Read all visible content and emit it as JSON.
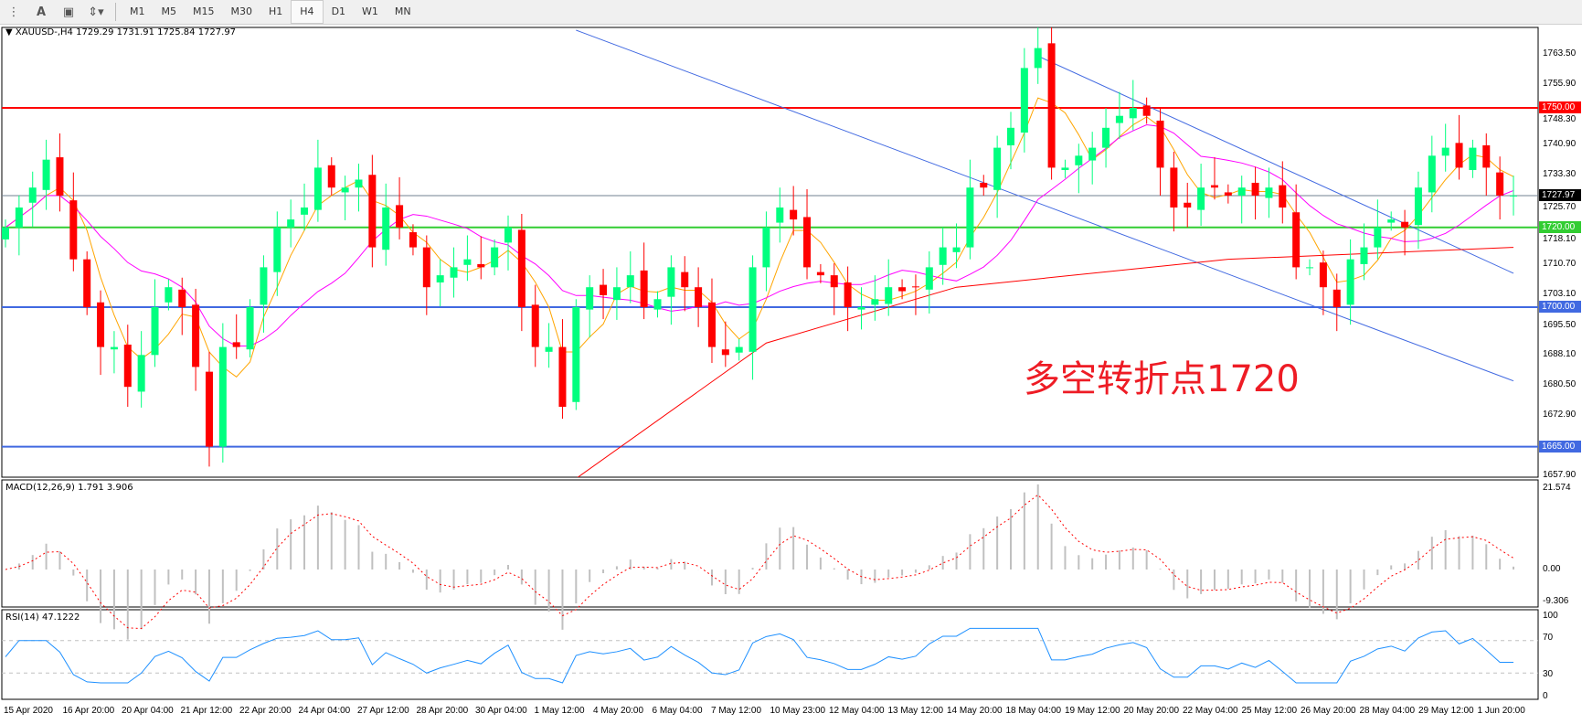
{
  "toolbar": {
    "icons": [
      "fibo-icon",
      "text-label-icon",
      "text-box-icon",
      "arrows-icon"
    ],
    "timeframes": [
      "M1",
      "M5",
      "M15",
      "M30",
      "H1",
      "H4",
      "D1",
      "W1",
      "MN"
    ],
    "active_timeframe": "H4"
  },
  "chart": {
    "symbol_info": "XAUUSD-,H4  1729.29 1731.91 1725.84 1727.97",
    "annotation": "多空转折点1720",
    "price_axis": [
      "1763.50",
      "1755.90",
      "1748.30",
      "1740.90",
      "1733.30",
      "1725.70",
      "1718.10",
      "1710.70",
      "1703.10",
      "1695.50",
      "1688.10",
      "1680.50",
      "1672.90",
      "1657.90"
    ],
    "levels": [
      {
        "label": "1750.00",
        "price": 1750,
        "color": "#ff0000"
      },
      {
        "label": "1727.97",
        "price": 1727.97,
        "color": "#000000",
        "line": "#708090"
      },
      {
        "label": "1720.00",
        "price": 1720,
        "color": "#32cd32"
      },
      {
        "label": "1700.00",
        "price": 1700,
        "color": "#4169e1"
      },
      {
        "label": "1665.00",
        "price": 1665,
        "color": "#4169e1"
      }
    ],
    "time_axis": [
      "15 Apr 2020",
      "16 Apr 20:00",
      "20 Apr 04:00",
      "21 Apr 12:00",
      "22 Apr 20:00",
      "24 Apr 04:00",
      "27 Apr 12:00",
      "28 Apr 20:00",
      "30 Apr 04:00",
      "1 May 12:00",
      "4 May 20:00",
      "6 May 04:00",
      "7 May 12:00",
      "10 May 23:00",
      "12 May 04:00",
      "13 May 12:00",
      "14 May 20:00",
      "18 May 04:00",
      "19 May 12:00",
      "20 May 20:00",
      "22 May 04:00",
      "25 May 12:00",
      "26 May 20:00",
      "28 May 04:00",
      "29 May 12:00",
      "1 Jun 20:00"
    ],
    "closes": [
      1720,
      1725,
      1730,
      1737,
      1728,
      1712,
      1700,
      1690,
      1690,
      1680,
      1688,
      1700,
      1705,
      1700,
      1685,
      1665,
      1690,
      1690,
      1700,
      1710,
      1720,
      1722,
      1725,
      1735,
      1730,
      1730,
      1732,
      1715,
      1725,
      1720,
      1715,
      1705,
      1708,
      1710,
      1712,
      1710,
      1715,
      1720,
      1700,
      1690,
      1690,
      1675,
      1700,
      1705,
      1703,
      1705,
      1708,
      1700,
      1702,
      1710,
      1705,
      1700,
      1690,
      1688,
      1690,
      1710,
      1720,
      1725,
      1722,
      1710,
      1708,
      1705,
      1700,
      1700,
      1702,
      1705,
      1704,
      1705,
      1710,
      1715,
      1715,
      1730,
      1730,
      1740,
      1745,
      1760,
      1765,
      1735,
      1735,
      1738,
      1740,
      1745,
      1748,
      1750,
      1748,
      1735,
      1725,
      1725,
      1730,
      1730,
      1728,
      1730,
      1728,
      1730,
      1725,
      1710,
      1710,
      1705,
      1700,
      1712,
      1715,
      1720,
      1722,
      1720,
      1730,
      1738,
      1740,
      1735,
      1740,
      1735,
      1728,
      1728
    ],
    "ma200": [
      [
        42,
        1657
      ],
      [
        56,
        1691
      ],
      [
        70,
        1705
      ],
      [
        90,
        1712
      ],
      [
        111,
        1715
      ]
    ],
    "trendlines": [
      {
        "from": [
          42,
          1769.5
        ],
        "to": [
          111,
          1681.5
        ],
        "color": "#4169e1"
      },
      {
        "from": [
          76,
          1763
        ],
        "to": [
          111,
          1708.5
        ],
        "color": "#4169e1"
      }
    ],
    "colors": {
      "bull": "#00ff7f",
      "bear": "#ff0000",
      "ma_fast": "#ffa500",
      "ma_mid": "#ff00ff",
      "ma_slow": "#ff0000"
    }
  },
  "macd": {
    "label": "MACD(12,26,9) 1.791 3.906",
    "axis": [
      "21.574",
      "0.00",
      "-9.306"
    ]
  },
  "rsi": {
    "label": "RSI(14) 47.1222",
    "axis": [
      "100",
      "70",
      "30",
      "0"
    ]
  }
}
